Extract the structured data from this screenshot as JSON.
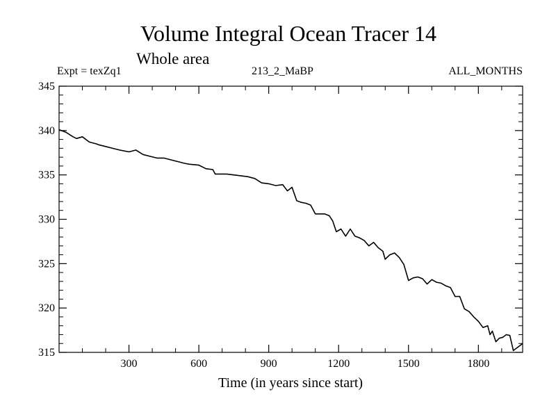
{
  "chart_data": {
    "type": "line",
    "title": "Volume Integral Ocean Tracer 14",
    "subtitle": "Whole area",
    "header_left": "Expt = texZq1",
    "header_center": "213_2_MaBP",
    "header_right": "ALL_MONTHS",
    "xlabel": "Time (in years since start)",
    "ylabel": "",
    "xlim": [
      0,
      1990
    ],
    "ylim": [
      315,
      345
    ],
    "xticks": [
      300,
      600,
      900,
      1200,
      1500,
      1800
    ],
    "xtick_labels": [
      "300",
      "600",
      "900",
      "1200",
      "1500",
      "1800"
    ],
    "yticks": [
      315,
      320,
      325,
      330,
      335,
      340,
      345
    ],
    "ytick_labels": [
      "315",
      "320",
      "325",
      "330",
      "335",
      "340",
      "345"
    ],
    "series": [
      {
        "name": "Volume Integral Ocean Tracer 14",
        "x": [
          0,
          30,
          60,
          75,
          100,
          130,
          160,
          170,
          200,
          230,
          260,
          280,
          300,
          330,
          360,
          390,
          420,
          450,
          480,
          510,
          540,
          560,
          600,
          630,
          660,
          670,
          690,
          720,
          750,
          780,
          810,
          840,
          870,
          900,
          930,
          960,
          980,
          1000,
          1020,
          1040,
          1060,
          1080,
          1100,
          1120,
          1140,
          1160,
          1175,
          1190,
          1210,
          1230,
          1250,
          1270,
          1290,
          1310,
          1330,
          1350,
          1370,
          1390,
          1400,
          1420,
          1440,
          1460,
          1480,
          1500,
          1520,
          1540,
          1560,
          1580,
          1600,
          1620,
          1640,
          1660,
          1680,
          1700,
          1720,
          1740,
          1760,
          1780,
          1800,
          1820,
          1840,
          1850,
          1860,
          1875,
          1890,
          1905,
          1920,
          1935,
          1950,
          1960,
          1975,
          1990
        ],
        "values": [
          340.1,
          339.8,
          339.3,
          339.1,
          339.3,
          338.7,
          338.5,
          338.4,
          338.2,
          338.0,
          337.8,
          337.7,
          337.6,
          337.8,
          337.3,
          337.1,
          336.9,
          336.9,
          336.7,
          336.5,
          336.3,
          336.2,
          336.1,
          335.7,
          335.6,
          335.1,
          335.1,
          335.1,
          335.0,
          334.9,
          334.8,
          334.6,
          334.1,
          334.0,
          333.8,
          333.9,
          333.2,
          333.6,
          332.1,
          331.9,
          331.8,
          331.6,
          330.6,
          330.6,
          330.6,
          330.4,
          329.8,
          328.6,
          328.9,
          328.1,
          328.9,
          328.1,
          327.9,
          327.6,
          327.0,
          327.4,
          326.8,
          326.4,
          325.5,
          326.0,
          326.2,
          325.7,
          324.9,
          323.1,
          323.4,
          323.5,
          323.3,
          322.7,
          323.2,
          322.9,
          322.8,
          322.5,
          322.3,
          321.3,
          321.3,
          319.9,
          319.6,
          319.0,
          318.5,
          317.8,
          318.0,
          317.0,
          317.4,
          316.2,
          316.6,
          316.7,
          317.0,
          316.9,
          315.2,
          315.4,
          315.7,
          316.0
        ]
      }
    ],
    "grid": false,
    "legend": "none"
  }
}
